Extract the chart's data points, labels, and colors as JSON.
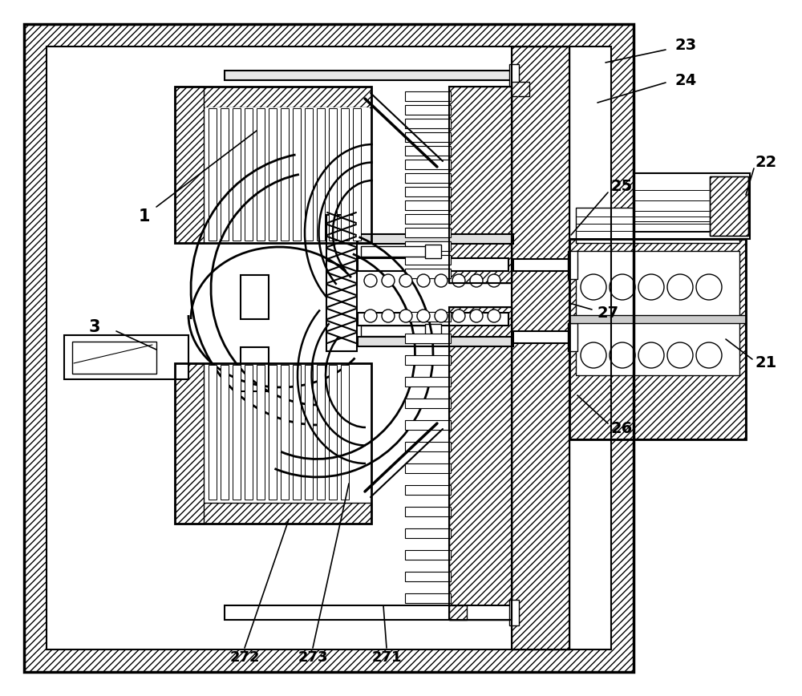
{
  "bg": "#ffffff",
  "fig_w": 10.0,
  "fig_h": 8.68
}
